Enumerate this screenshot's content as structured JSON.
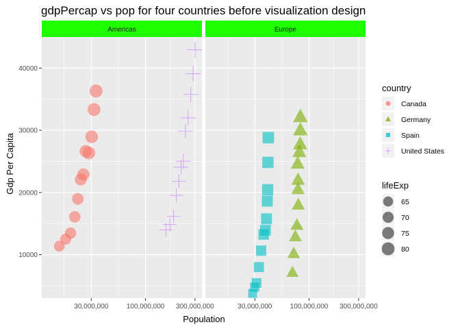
{
  "chart_data": {
    "type": "scatter",
    "title": "gdpPercap vs pop for four countries before visualization design",
    "xlabel": "Population",
    "ylabel": "Gdp Per Capita",
    "x_scale": "log10",
    "xlim": [
      10000000,
      350000000
    ],
    "ylim": [
      3000,
      45000
    ],
    "x_ticks": [
      30000000,
      100000000,
      300000000
    ],
    "x_tick_labels": [
      "30,000,000",
      "100,000,000",
      "300,000,000"
    ],
    "y_ticks": [
      10000,
      20000,
      30000,
      40000
    ],
    "y_tick_labels": [
      "10000",
      "20000",
      "30000",
      "40000"
    ],
    "grid": true,
    "strip_color": "#1eff00",
    "panels": [
      {
        "label": "Americas",
        "series_names": [
          "Canada",
          "United States"
        ]
      },
      {
        "label": "Europe",
        "series_names": [
          "Germany",
          "Spain"
        ]
      }
    ],
    "legend_placement": "right",
    "color_legend": {
      "title": "country",
      "items": [
        {
          "name": "Canada",
          "color": "#f8766d",
          "shape": "circle"
        },
        {
          "name": "Germany",
          "color": "#7cae00",
          "shape": "triangle"
        },
        {
          "name": "Spain",
          "color": "#00bfc4",
          "shape": "square"
        },
        {
          "name": "United States",
          "color": "#c77cff",
          "shape": "plus"
        }
      ]
    },
    "size_legend": {
      "title": "lifeExp",
      "items": [
        {
          "label": "65",
          "value": 65
        },
        {
          "label": "70",
          "value": 70
        },
        {
          "label": "75",
          "value": 75
        },
        {
          "label": "80",
          "value": 80
        }
      ]
    },
    "size_range": [
      46.5,
      80.7
    ],
    "series": [
      {
        "name": "Canada",
        "x": [
          14785584,
          17010154,
          18985849,
          20819767,
          22284500,
          23796400,
          25201900,
          26549700,
          28523502,
          30305843,
          31902268,
          33390141
        ],
        "y": [
          11367,
          12490,
          13462,
          16077,
          18971,
          22091,
          22899,
          26627,
          26343,
          28955,
          33329,
          36319
        ],
        "lifeExp": [
          68.75,
          69.96,
          71.3,
          72.13,
          72.88,
          74.21,
          75.76,
          76.86,
          77.95,
          78.61,
          79.77,
          80.65
        ]
      },
      {
        "name": "United States",
        "x": [
          157553000,
          171984000,
          186538000,
          198712000,
          209896000,
          220239000,
          232187835,
          242803533,
          256894189,
          272911760,
          287675526,
          301139947
        ],
        "y": [
          13990,
          14847,
          16173,
          19530,
          21806,
          24073,
          25010,
          29884,
          32004,
          35767,
          39097,
          42952
        ],
        "lifeExp": [
          68.44,
          69.49,
          70.21,
          70.76,
          71.34,
          73.38,
          74.65,
          75.02,
          76.09,
          76.81,
          77.31,
          78.24
        ]
      },
      {
        "name": "Germany",
        "x": [
          69145952,
          71019069,
          73739117,
          76368453,
          78717088,
          78160773,
          78335266,
          77718298,
          80597764,
          82011073,
          82350671,
          82400996
        ],
        "y": [
          7144,
          10188,
          12902,
          14746,
          18016,
          20513,
          22032,
          24639,
          26505,
          27789,
          30036,
          32170
        ],
        "lifeExp": [
          67.5,
          69.1,
          70.3,
          70.8,
          71.0,
          72.5,
          73.8,
          74.847,
          76.07,
          77.34,
          78.67,
          79.406
        ]
      },
      {
        "name": "Spain",
        "x": [
          28549870,
          29841614,
          31158061,
          32850275,
          34513161,
          36439000,
          37983310,
          38880702,
          39549438,
          39855442,
          40152517,
          40448191
        ],
        "y": [
          3759,
          4759,
          5431,
          7993,
          10639,
          13237,
          13926,
          15765,
          18603,
          20445,
          24835,
          28821
        ],
        "lifeExp": [
          64.94,
          66.66,
          69.69,
          71.44,
          73.06,
          74.39,
          76.3,
          76.9,
          77.57,
          78.77,
          79.78,
          80.941
        ]
      }
    ]
  }
}
